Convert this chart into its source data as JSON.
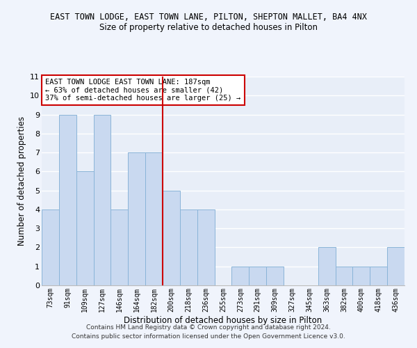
{
  "title1": "EAST TOWN LODGE, EAST TOWN LANE, PILTON, SHEPTON MALLET, BA4 4NX",
  "title2": "Size of property relative to detached houses in Pilton",
  "xlabel": "Distribution of detached houses by size in Pilton",
  "ylabel": "Number of detached properties",
  "categories": [
    "73sqm",
    "91sqm",
    "109sqm",
    "127sqm",
    "146sqm",
    "164sqm",
    "182sqm",
    "200sqm",
    "218sqm",
    "236sqm",
    "255sqm",
    "273sqm",
    "291sqm",
    "309sqm",
    "327sqm",
    "345sqm",
    "363sqm",
    "382sqm",
    "400sqm",
    "418sqm",
    "436sqm"
  ],
  "values": [
    4,
    9,
    6,
    9,
    4,
    7,
    7,
    5,
    4,
    4,
    0,
    1,
    1,
    1,
    0,
    0,
    2,
    1,
    1,
    1,
    2
  ],
  "bar_color": "#c9d9f0",
  "bar_edge_color": "#8ab4d8",
  "vline_x": 6.5,
  "vline_color": "#cc0000",
  "annotation_text": "EAST TOWN LODGE EAST TOWN LANE: 187sqm\n← 63% of detached houses are smaller (42)\n37% of semi-detached houses are larger (25) →",
  "annotation_box_color": "#ffffff",
  "annotation_border_color": "#cc0000",
  "ylim": [
    0,
    11
  ],
  "yticks": [
    0,
    1,
    2,
    3,
    4,
    5,
    6,
    7,
    8,
    9,
    10,
    11
  ],
  "footer": "Contains HM Land Registry data © Crown copyright and database right 2024.\nContains public sector information licensed under the Open Government Licence v3.0.",
  "bg_color": "#e8eef8",
  "fig_bg_color": "#f0f4fc",
  "grid_color": "#ffffff"
}
